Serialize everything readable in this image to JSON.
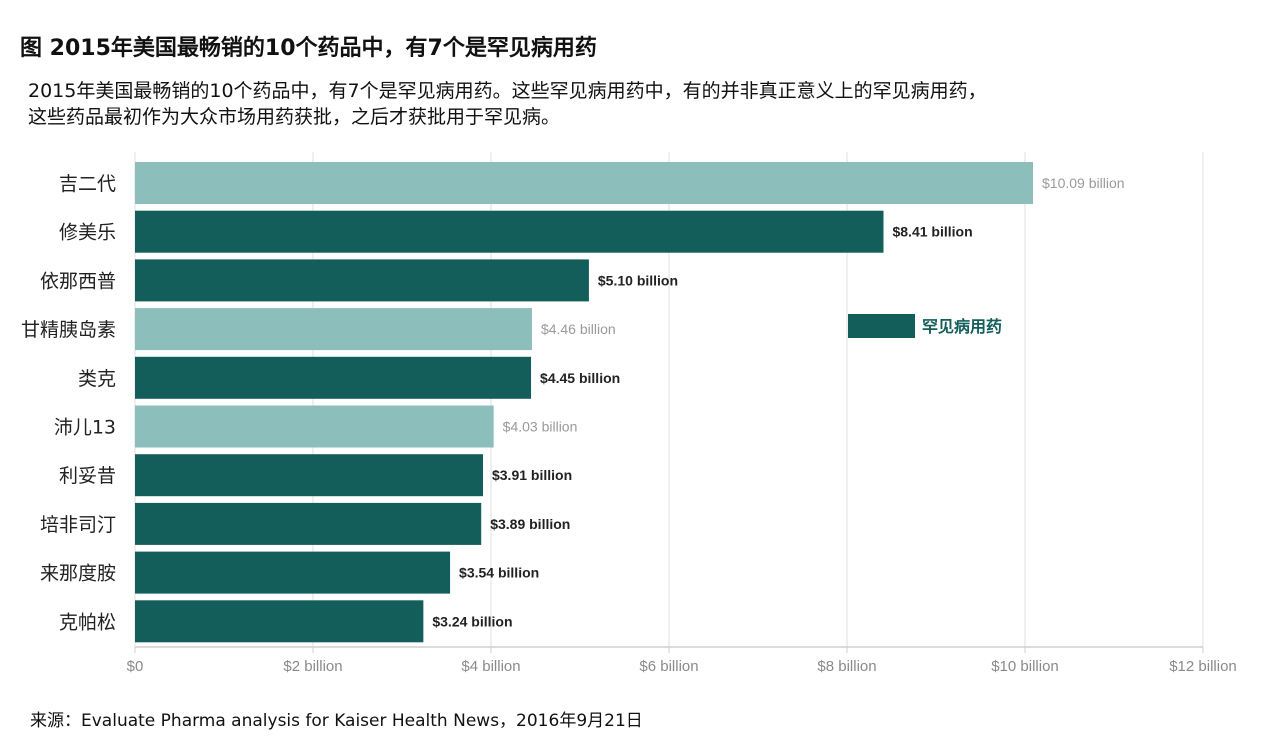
{
  "title": "图 2015年美国最畅销的10个药品中，有7个是罕见病用药",
  "subtitle": {
    "line1": "2015年美国最畅销的10个药品中，有7个是罕见病用药。这些罕见病用药中，有的并非真正意义上的罕见病用药，",
    "line2": "这些药品最初作为大众市场用药获批，之后才获批用于罕见病。"
  },
  "source": "来源：Evaluate Pharma analysis for Kaiser Health News，2016年9月21日",
  "colors": {
    "orphan": "#135e5a",
    "non_orphan": "#8cbfbc",
    "orphan_label": "#222222",
    "non_orphan_label": "#9a9a9a",
    "grid": "#e4e4e4",
    "legend_text": "#135e5a"
  },
  "chart_data": {
    "type": "bar",
    "orientation": "horizontal",
    "categories": [
      "吉二代",
      "修美乐",
      "依那西普",
      "甘精胰岛素",
      "类克",
      "沛儿13",
      "利妥昔",
      "培非司汀",
      "来那度胺",
      "克帕松"
    ],
    "values": [
      10.09,
      8.41,
      5.1,
      4.46,
      4.45,
      4.03,
      3.91,
      3.89,
      3.54,
      3.24
    ],
    "value_labels": [
      "$10.09 billion",
      "$8.41 billion",
      "$5.10 billion",
      "$4.46 billion",
      "$4.45 billion",
      "$4.03 billion",
      "$3.91 billion",
      "$3.89 billion",
      "$3.54 billion",
      "$3.24 billion"
    ],
    "orphan_drug": [
      false,
      true,
      true,
      false,
      true,
      false,
      true,
      true,
      true,
      true
    ],
    "xlim": [
      0,
      12
    ],
    "x_ticks": [
      0,
      2,
      4,
      6,
      8,
      10,
      12
    ],
    "x_tick_labels": [
      "$0",
      "$2 billion",
      "$4 billion",
      "$6 billion",
      "$8 billion",
      "$10 billion",
      "$12 billion"
    ],
    "legend": {
      "label": "罕见病用药",
      "placement": "right-middle"
    },
    "grid": true
  }
}
